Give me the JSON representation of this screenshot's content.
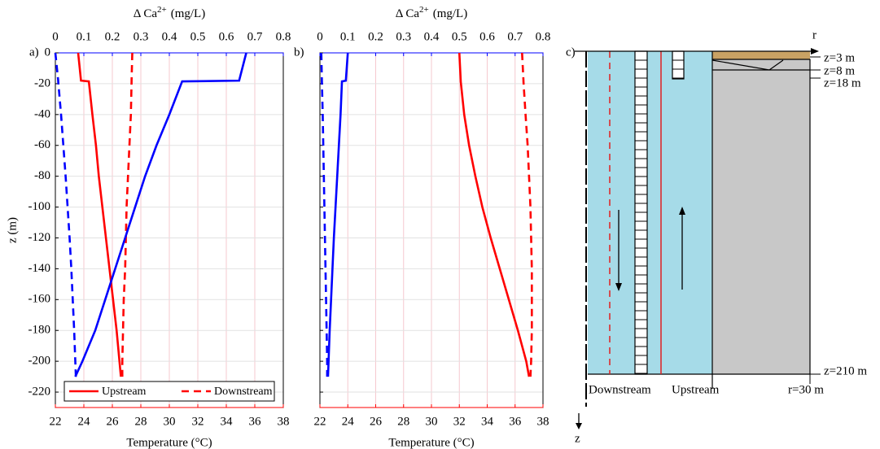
{
  "chart_data": [
    {
      "type": "line",
      "panel_label": "a)",
      "xlabel": "Temperature (°C)",
      "ylabel": "z (m)",
      "x2label": {
        "text": "Δ Ca",
        "superscript": "2+",
        "unit": "(mg/L)"
      },
      "xlim": [
        22,
        38
      ],
      "xticks": [
        22,
        24,
        26,
        28,
        30,
        32,
        34,
        36,
        38
      ],
      "x2lim": [
        0,
        0.8
      ],
      "x2ticks": [
        0,
        0.1,
        0.2,
        0.3,
        0.4,
        0.5,
        0.6,
        0.7,
        0.8
      ],
      "ylim": [
        -230,
        0
      ],
      "yticks": [
        0,
        -20,
        -40,
        -60,
        -80,
        -100,
        -120,
        -140,
        -160,
        -180,
        -200,
        -220
      ],
      "ytick_labels": true,
      "x_color": "#ff0000",
      "x2_color": "#0000ff",
      "grid": true,
      "legend": "lower center",
      "z": [
        0,
        -18,
        -18.5,
        -40,
        -60,
        -80,
        -100,
        -120,
        -140,
        -160,
        -180,
        -200,
        -210
      ],
      "series": [
        {
          "name": "Upstream",
          "color": "#ff0000",
          "dash": "solid",
          "axis": "x",
          "values": [
            23.6,
            23.8,
            24.35,
            24.6,
            24.85,
            25.05,
            25.3,
            25.55,
            25.8,
            26.05,
            26.3,
            26.5,
            26.6
          ]
        },
        {
          "name": "Downstream",
          "color": "#ff0000",
          "dash": "dashed",
          "axis": "x",
          "values": [
            27.4,
            27.35,
            27.35,
            27.3,
            27.2,
            27.1,
            27.0,
            26.95,
            26.9,
            26.8,
            26.75,
            26.7,
            26.7
          ]
        },
        {
          "color": "#0000ff",
          "dash": "solid",
          "axis": "x2",
          "values": [
            0.67,
            0.645,
            0.445,
            0.4,
            0.355,
            0.315,
            0.28,
            0.245,
            0.21,
            0.175,
            0.14,
            0.095,
            0.07
          ]
        },
        {
          "color": "#0000ff",
          "dash": "dashed",
          "axis": "x2",
          "values": [
            0.0,
            0.01,
            0.01,
            0.02,
            0.028,
            0.036,
            0.043,
            0.05,
            0.056,
            0.061,
            0.066,
            0.07,
            0.072
          ]
        }
      ]
    },
    {
      "type": "line",
      "panel_label": "b)",
      "xlabel": "Temperature (°C)",
      "x2label": {
        "text": "Δ Ca",
        "superscript": "2+",
        "unit": "(mg/L)"
      },
      "xlim": [
        22,
        38
      ],
      "xticks": [
        22,
        24,
        26,
        28,
        30,
        32,
        34,
        36,
        38
      ],
      "x2lim": [
        0,
        0.8
      ],
      "x2ticks": [
        0,
        0.1,
        0.2,
        0.3,
        0.4,
        0.5,
        0.6,
        0.7,
        0.8
      ],
      "ylim": [
        -230,
        0
      ],
      "yticks": [
        0,
        -20,
        -40,
        -60,
        -80,
        -100,
        -120,
        -140,
        -160,
        -180,
        -200,
        -220
      ],
      "ytick_labels": false,
      "x_color": "#ff0000",
      "x2_color": "#0000ff",
      "grid": true,
      "z": [
        0,
        -18,
        -18.5,
        -40,
        -60,
        -80,
        -100,
        -120,
        -140,
        -160,
        -180,
        -200,
        -210
      ],
      "series": [
        {
          "color": "#ff0000",
          "dash": "solid",
          "axis": "x",
          "values": [
            32.0,
            32.1,
            32.1,
            32.35,
            32.7,
            33.15,
            33.65,
            34.25,
            34.9,
            35.55,
            36.2,
            36.8,
            37.0
          ]
        },
        {
          "color": "#ff0000",
          "dash": "dashed",
          "axis": "x",
          "values": [
            36.5,
            36.6,
            36.6,
            36.75,
            36.9,
            37.0,
            37.1,
            37.15,
            37.2,
            37.2,
            37.2,
            37.15,
            37.1
          ]
        },
        {
          "color": "#0000ff",
          "dash": "solid",
          "axis": "x2",
          "values": [
            0.1,
            0.093,
            0.079,
            0.074,
            0.068,
            0.062,
            0.056,
            0.05,
            0.045,
            0.04,
            0.035,
            0.031,
            0.029
          ]
        },
        {
          "color": "#0000ff",
          "dash": "dashed",
          "axis": "x2",
          "values": [
            0.005,
            0.007,
            0.007,
            0.01,
            0.012,
            0.014,
            0.016,
            0.018,
            0.02,
            0.022,
            0.024,
            0.026,
            0.026
          ]
        }
      ]
    }
  ],
  "diagram": {
    "panel_label": "c)",
    "axis_r": "r",
    "axis_z": "z",
    "depth_labels": [
      "z=3 m",
      "z=8 m",
      "z=18 m",
      "z=210 m"
    ],
    "radius_label": "r=30 m",
    "zones": [
      "Downstream",
      "Upstream"
    ]
  }
}
